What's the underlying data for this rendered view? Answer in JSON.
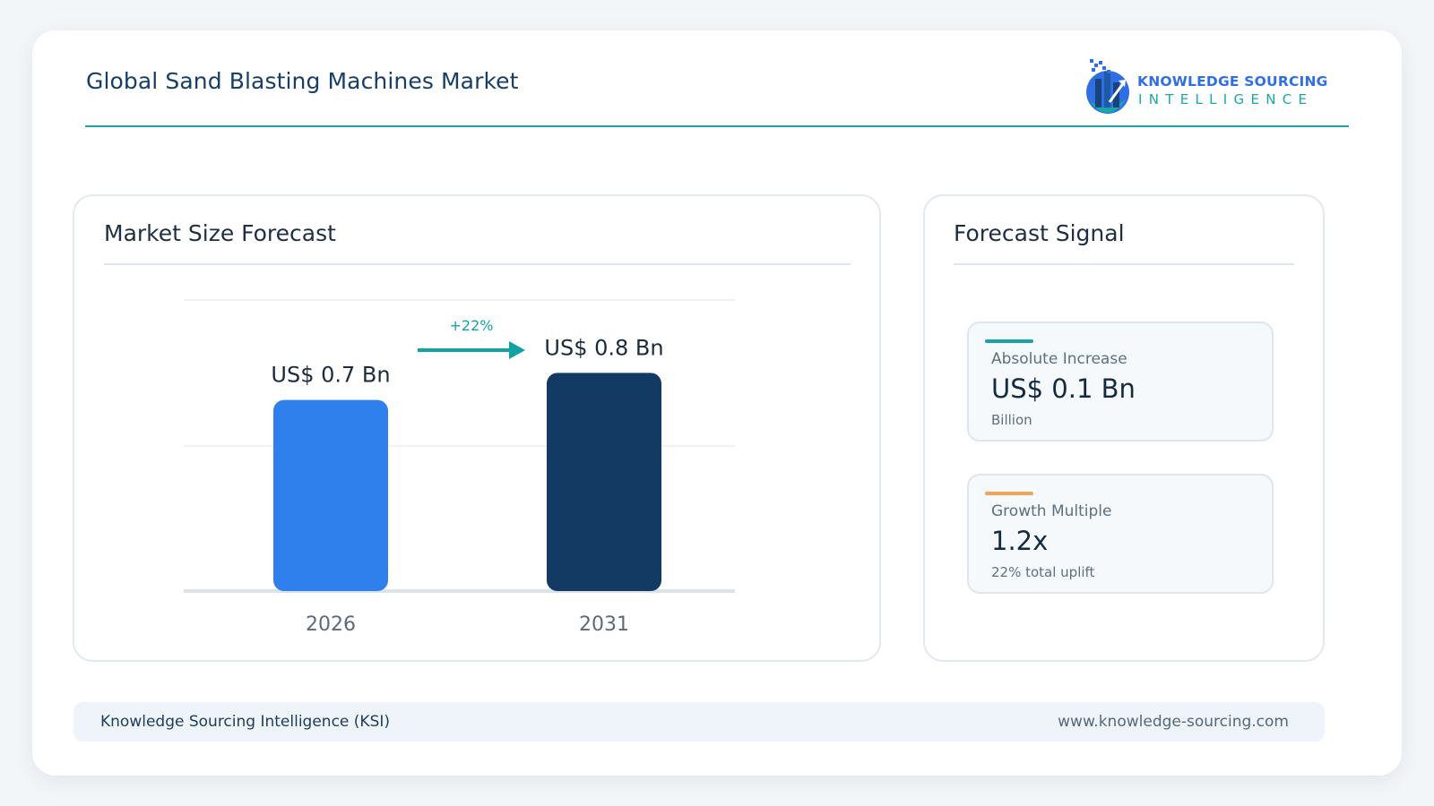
{
  "header": {
    "title": "Global Sand Blasting Machines Market",
    "logo_line1": "KNOWLEDGE SOURCING",
    "logo_line2": "INTELLIGENCE"
  },
  "left_panel": {
    "title": "Market Size Forecast"
  },
  "right_panel": {
    "title": "Forecast Signal"
  },
  "chart_data": {
    "type": "bar",
    "categories": [
      "2026",
      "2031"
    ],
    "values": [
      0.7,
      0.8
    ],
    "value_labels": [
      "US$ 0.7 Bn",
      "US$ 0.8 Bn"
    ],
    "colors": [
      "#2f80ed",
      "#123a63"
    ],
    "growth_label": "+22%",
    "growth_color": "#11a3a3",
    "grid": true
  },
  "stats": [
    {
      "label": "Absolute Increase",
      "value": "US$ 0.1 Bn",
      "sub": "Billion",
      "accent": "#16a4a4"
    },
    {
      "label": "Growth Multiple",
      "value": "1.2x",
      "sub": "22% total uplift",
      "accent": "#f0a552"
    }
  ],
  "footer": {
    "left": "Knowledge Sourcing Intelligence (KSI)",
    "right": "www.knowledge-sourcing.com"
  }
}
